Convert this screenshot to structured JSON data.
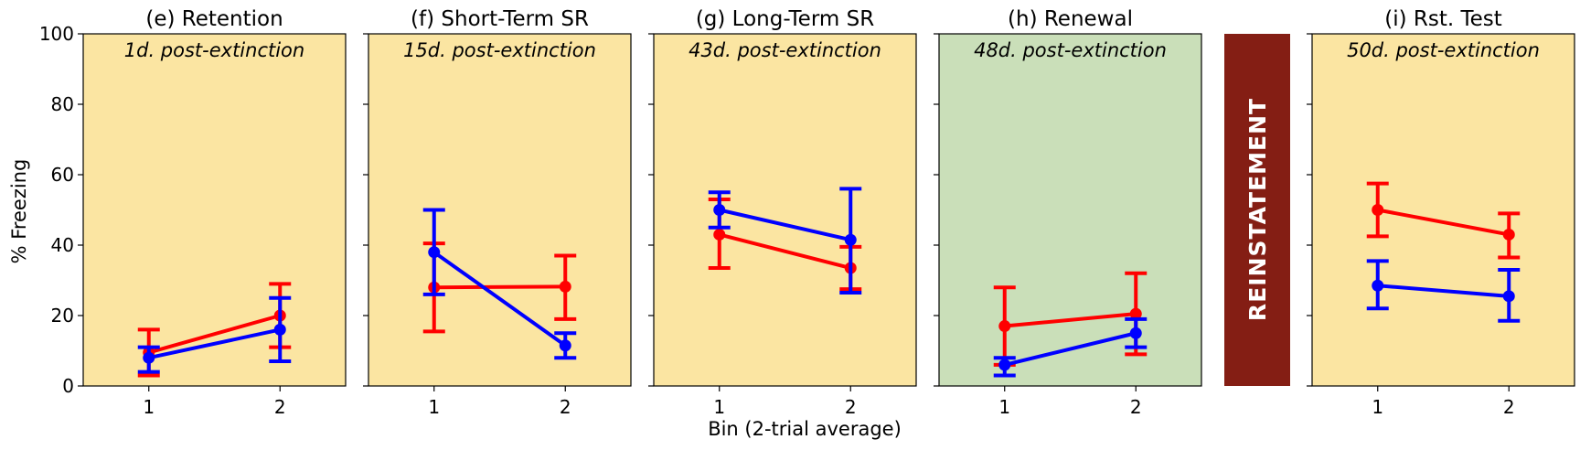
{
  "figure": {
    "ylabel": "% Freezing",
    "xlabel": "Bin (2-trial average)",
    "divider_label": "REINSTATEMENT",
    "colors": {
      "phase_default": "#fbe5a2",
      "phase_renewal": "#cadfb9",
      "divider": "#841e14",
      "series_red": "#ff0000",
      "series_blue": "#0000ff"
    }
  },
  "chart_data": [
    {
      "type": "line",
      "title": "(e) Retention",
      "annotation": "1d. post-extinction",
      "background": "phase_default",
      "x": [
        1,
        2
      ],
      "xticks": [
        "1",
        "2"
      ],
      "ylim": [
        0,
        100
      ],
      "yticks": [
        0,
        20,
        40,
        60,
        80,
        100
      ],
      "series": [
        {
          "color": "series_red",
          "values": [
            9.5,
            20
          ],
          "err_low": [
            3,
            11
          ],
          "err_high": [
            16,
            29
          ]
        },
        {
          "color": "series_blue",
          "values": [
            8,
            16
          ],
          "err_low": [
            4,
            7
          ],
          "err_high": [
            11,
            25
          ]
        }
      ]
    },
    {
      "type": "line",
      "title": "(f) Short-Term SR",
      "annotation": "15d. post-extinction",
      "background": "phase_default",
      "x": [
        1,
        2
      ],
      "xticks": [
        "1",
        "2"
      ],
      "ylim": [
        0,
        100
      ],
      "series": [
        {
          "color": "series_red",
          "values": [
            28,
            28.2
          ],
          "err_low": [
            15.5,
            19
          ],
          "err_high": [
            40.5,
            37
          ]
        },
        {
          "color": "series_blue",
          "values": [
            38,
            11.5
          ],
          "err_low": [
            26,
            8
          ],
          "err_high": [
            50,
            15
          ]
        }
      ]
    },
    {
      "type": "line",
      "title": "(g) Long-Term SR",
      "annotation": "43d. post-extinction",
      "background": "phase_default",
      "x": [
        1,
        2
      ],
      "xticks": [
        "1",
        "2"
      ],
      "ylim": [
        0,
        100
      ],
      "series": [
        {
          "color": "series_red",
          "values": [
            43,
            33.5
          ],
          "err_low": [
            33.5,
            27.5
          ],
          "err_high": [
            53,
            39.5
          ]
        },
        {
          "color": "series_blue",
          "values": [
            50,
            41.5
          ],
          "err_low": [
            45,
            26.5
          ],
          "err_high": [
            55,
            56
          ]
        }
      ]
    },
    {
      "type": "line",
      "title": "(h) Renewal",
      "annotation": "48d. post-extinction",
      "background": "phase_renewal",
      "x": [
        1,
        2
      ],
      "xticks": [
        "1",
        "2"
      ],
      "ylim": [
        0,
        100
      ],
      "series": [
        {
          "color": "series_red",
          "values": [
            17,
            20.5
          ],
          "err_low": [
            6,
            9
          ],
          "err_high": [
            28,
            32
          ]
        },
        {
          "color": "series_blue",
          "values": [
            6,
            15
          ],
          "err_low": [
            3,
            11
          ],
          "err_high": [
            8,
            19
          ]
        }
      ]
    },
    {
      "type": "line",
      "title": "(i) Rst. Test",
      "annotation": "50d. post-extinction",
      "background": "phase_default",
      "x": [
        1,
        2
      ],
      "xticks": [
        "1",
        "2"
      ],
      "ylim": [
        0,
        100
      ],
      "series": [
        {
          "color": "series_red",
          "values": [
            50,
            43
          ],
          "err_low": [
            42.5,
            36.5
          ],
          "err_high": [
            57.5,
            49
          ]
        },
        {
          "color": "series_blue",
          "values": [
            28.5,
            25.5
          ],
          "err_low": [
            22,
            18.5
          ],
          "err_high": [
            35.5,
            33
          ]
        }
      ]
    }
  ]
}
